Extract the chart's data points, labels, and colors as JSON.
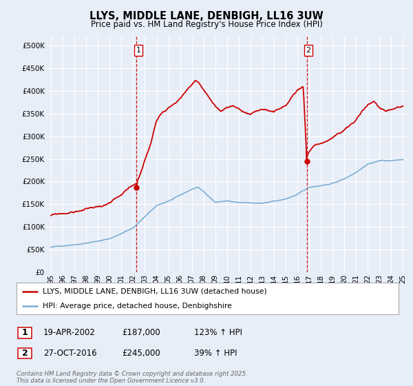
{
  "title": "LLYS, MIDDLE LANE, DENBIGH, LL16 3UW",
  "subtitle": "Price paid vs. HM Land Registry's House Price Index (HPI)",
  "background_color": "#e8eef8",
  "plot_bg_color": "#e8eef8",
  "grid_color": "#ffffff",
  "sale1_date": "19-APR-2002",
  "sale1_price": 187000,
  "sale1_hpi": "123% ↑ HPI",
  "sale2_date": "27-OCT-2016",
  "sale2_price": 245000,
  "sale2_hpi": "39% ↑ HPI",
  "legend_label_red": "LLYS, MIDDLE LANE, DENBIGH, LL16 3UW (detached house)",
  "legend_label_blue": "HPI: Average price, detached house, Denbighshire",
  "footer": "Contains HM Land Registry data © Crown copyright and database right 2025.\nThis data is licensed under the Open Government Licence v3.0.",
  "red_color": "#cc0000",
  "blue_color": "#7aadd4",
  "vline_color": "#cc0000",
  "ylim": [
    0,
    520000
  ],
  "yticks": [
    0,
    50000,
    100000,
    150000,
    200000,
    250000,
    300000,
    350000,
    400000,
    450000,
    500000
  ],
  "xlim_start": 1994.7,
  "xlim_end": 2025.5,
  "sale1_x": 2002.29,
  "sale2_x": 2016.79
}
